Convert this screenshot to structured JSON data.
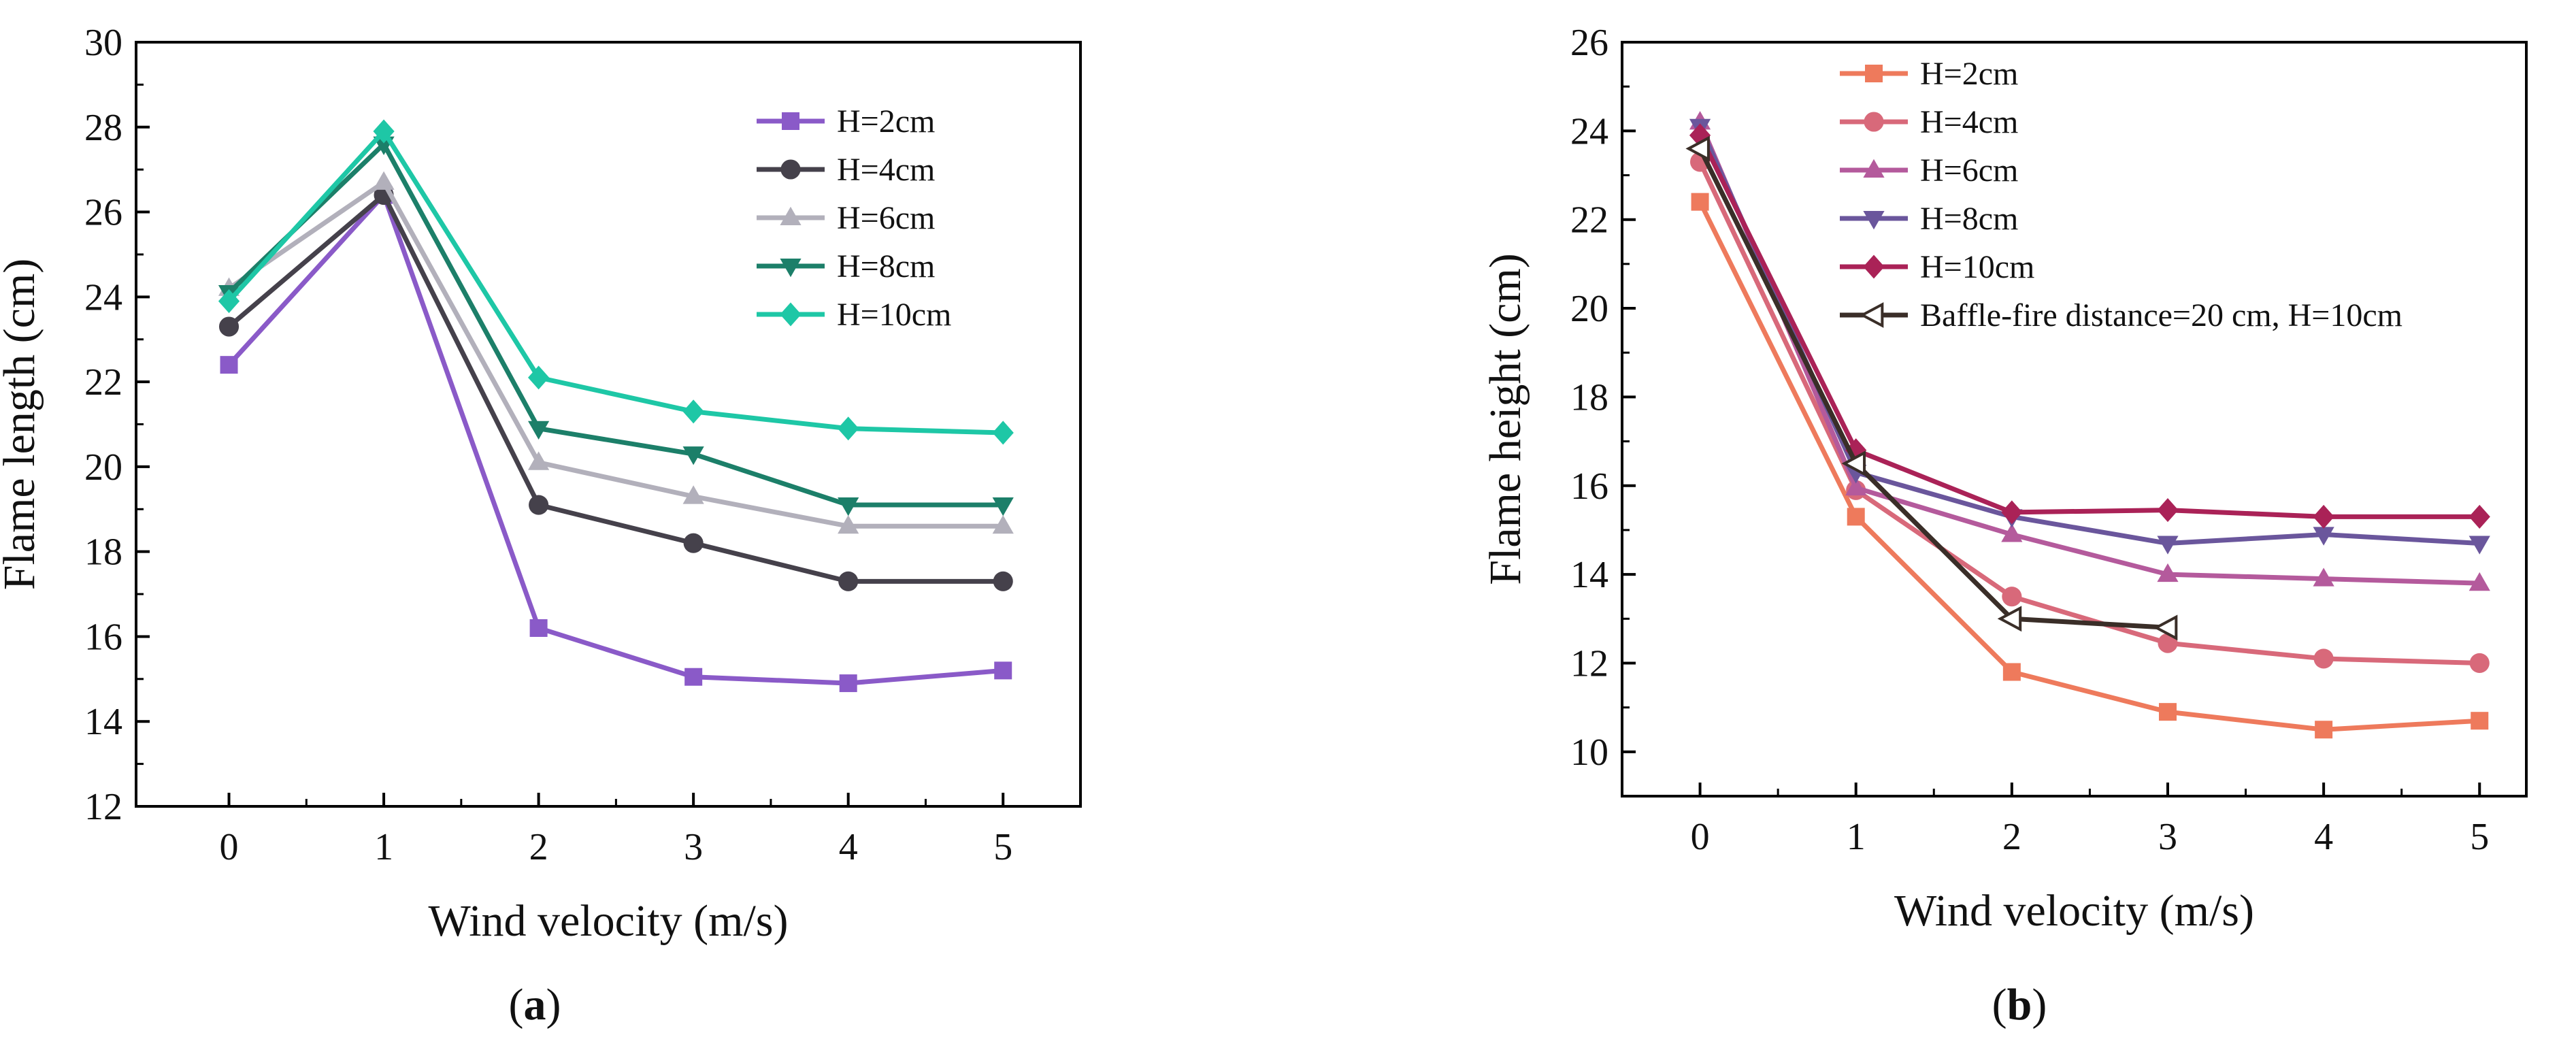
{
  "panel_labels": {
    "a": "a",
    "b": "b"
  },
  "chart_data": [
    {
      "type": "line",
      "panel": "a",
      "xlabel": "Wind velocity (m/s)",
      "ylabel": "Flame length (cm)",
      "xlim": [
        -0.6,
        5.5
      ],
      "ylim": [
        12,
        30
      ],
      "xticks": [
        0,
        1,
        2,
        3,
        4,
        5
      ],
      "yticks": [
        12,
        14,
        16,
        18,
        20,
        22,
        24,
        26,
        28,
        30
      ],
      "legend_position": "top-right",
      "series": [
        {
          "name": "H=2cm",
          "color": "#8a5ac8",
          "marker": "square",
          "x": [
            0,
            1,
            2,
            3,
            4,
            5
          ],
          "y": [
            22.4,
            26.4,
            16.2,
            15.05,
            14.9,
            15.2
          ]
        },
        {
          "name": "H=4cm",
          "color": "#45414b",
          "marker": "circle",
          "x": [
            0,
            1,
            2,
            3,
            4,
            5
          ],
          "y": [
            23.3,
            26.4,
            19.1,
            18.2,
            17.3,
            17.3
          ]
        },
        {
          "name": "H=6cm",
          "color": "#b2b0bb",
          "marker": "triangle-up",
          "x": [
            0,
            1,
            2,
            3,
            4,
            5
          ],
          "y": [
            24.2,
            26.7,
            20.1,
            19.3,
            18.6,
            18.6
          ]
        },
        {
          "name": "H=8cm",
          "color": "#1c7f69",
          "marker": "triangle-down",
          "x": [
            0,
            1,
            2,
            3,
            4,
            5
          ],
          "y": [
            24.1,
            27.6,
            20.9,
            20.3,
            19.1,
            19.1
          ]
        },
        {
          "name": "H=10cm",
          "color": "#1ec7a6",
          "marker": "diamond",
          "x": [
            0,
            1,
            2,
            3,
            4,
            5
          ],
          "y": [
            23.9,
            27.9,
            22.1,
            21.3,
            20.9,
            20.8
          ]
        }
      ]
    },
    {
      "type": "line",
      "panel": "b",
      "xlabel": "Wind velocity (m/s)",
      "ylabel": "Flame height (cm)",
      "xlim": [
        -0.5,
        5.3
      ],
      "ylim": [
        9,
        26
      ],
      "xticks": [
        0,
        1,
        2,
        3,
        4,
        5
      ],
      "yticks": [
        10,
        12,
        14,
        16,
        18,
        20,
        22,
        24,
        26
      ],
      "legend_position": "top-left",
      "series": [
        {
          "name": "H=2cm",
          "color": "#ee7a5c",
          "marker": "square",
          "x": [
            0,
            1,
            2,
            3,
            4,
            5
          ],
          "y": [
            22.4,
            15.3,
            11.8,
            10.9,
            10.5,
            10.7
          ]
        },
        {
          "name": "H=4cm",
          "color": "#d8697a",
          "marker": "circle",
          "x": [
            0,
            1,
            2,
            3,
            4,
            5
          ],
          "y": [
            23.3,
            15.9,
            13.5,
            12.45,
            12.1,
            12.0
          ]
        },
        {
          "name": "H=6cm",
          "color": "#b45a9c",
          "marker": "triangle-up",
          "x": [
            0,
            1,
            2,
            3,
            4,
            5
          ],
          "y": [
            24.2,
            15.95,
            14.9,
            14.0,
            13.9,
            13.8
          ]
        },
        {
          "name": "H=8cm",
          "color": "#6a569c",
          "marker": "triangle-down",
          "x": [
            0,
            1,
            2,
            3,
            4,
            5
          ],
          "y": [
            24.1,
            16.3,
            15.3,
            14.7,
            14.9,
            14.7
          ]
        },
        {
          "name": "H=10cm",
          "color": "#aa2257",
          "marker": "diamond",
          "x": [
            0,
            1,
            2,
            3,
            4,
            5
          ],
          "y": [
            23.9,
            16.8,
            15.4,
            15.45,
            15.3,
            15.3
          ]
        },
        {
          "name": "Baffle-fire  distance=20 cm, H=10cm",
          "color": "#3a2e28",
          "marker": "triangle-left-open",
          "x": [
            0,
            1,
            2,
            3
          ],
          "y": [
            23.6,
            16.5,
            13.0,
            12.8
          ]
        }
      ]
    }
  ]
}
